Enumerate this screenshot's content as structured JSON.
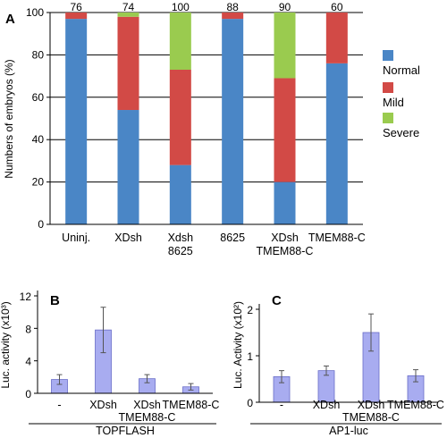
{
  "colors": {
    "normal": "#4a86c6",
    "mild": "#d24a46",
    "severe": "#9acb4f",
    "bar_light": "#a8acf0",
    "bar_edge": "#6a6ec8"
  },
  "chart_data": [
    {
      "panel_label": "A",
      "type": "bar",
      "stacked": true,
      "ylabel": "Numbers of embryos (%)",
      "ylim": [
        0,
        100
      ],
      "yticks": [
        "0",
        "20",
        "40",
        "60",
        "80",
        "100"
      ],
      "categories": [
        {
          "line1": "Uninj.",
          "line2": ""
        },
        {
          "line1": "XDsh",
          "line2": ""
        },
        {
          "line1": "Xdsh",
          "line2": "8625"
        },
        {
          "line1": "8625",
          "line2": ""
        },
        {
          "line1": "XDsh",
          "line2": "TMEM88-C"
        },
        {
          "line1": "TMEM88-C",
          "line2": ""
        }
      ],
      "counts": [
        "76",
        "74",
        "100",
        "88",
        "90",
        "60"
      ],
      "series": [
        {
          "name": "Normal",
          "color_key": "normal",
          "values": [
            97,
            54,
            28,
            97,
            20,
            76
          ]
        },
        {
          "name": "Mild",
          "color_key": "mild",
          "values": [
            3,
            44,
            45,
            3,
            49,
            24
          ]
        },
        {
          "name": "Severe",
          "color_key": "severe",
          "values": [
            0,
            2,
            27,
            0,
            31,
            0
          ]
        }
      ],
      "grid": true,
      "legend_position": "right"
    },
    {
      "panel_label": "B",
      "type": "bar",
      "ylabel": "Luc. activity (x10³)",
      "ylim": [
        0,
        12
      ],
      "yticks": [
        "0",
        "4",
        "8",
        "12"
      ],
      "categories": [
        {
          "line1": "-",
          "line2": ""
        },
        {
          "line1": "XDsh",
          "line2": ""
        },
        {
          "line1": "XDsh",
          "line2": "TMEM88-C"
        },
        {
          "line1": "TMEM88-C",
          "line2": ""
        }
      ],
      "values": [
        1.7,
        7.8,
        1.8,
        0.8
      ],
      "errors": [
        0.6,
        2.8,
        0.5,
        0.4
      ],
      "group_label": "TOPFLASH"
    },
    {
      "panel_label": "C",
      "type": "bar",
      "ylabel": "Luc. Activity (x10²)",
      "ylim": [
        0,
        2
      ],
      "yticks": [
        "0",
        "1",
        "2"
      ],
      "categories": [
        {
          "line1": "-",
          "line2": ""
        },
        {
          "line1": "XDsh",
          "line2": ""
        },
        {
          "line1": "XDsh",
          "line2": "TMEM88-C"
        },
        {
          "line1": "TMEM88-C",
          "line2": ""
        }
      ],
      "values": [
        0.55,
        0.68,
        1.5,
        0.57
      ],
      "errors": [
        0.13,
        0.1,
        0.4,
        0.13
      ],
      "group_label": "AP1-luc"
    }
  ]
}
